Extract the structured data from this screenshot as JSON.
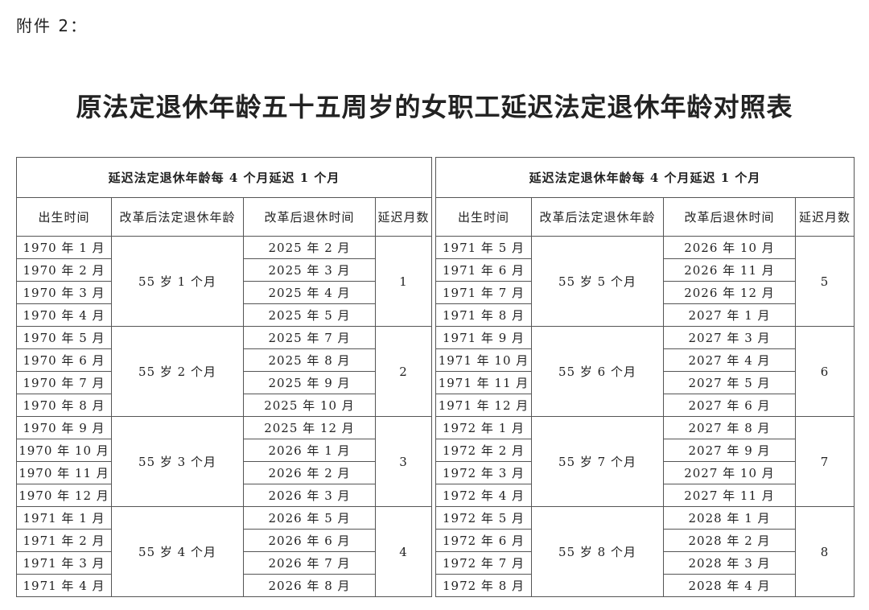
{
  "attachment_label": "附件 2：",
  "title": "原法定退休年龄五十五周岁的女职工延迟法定退休年龄对照表",
  "tables": [
    {
      "header": "延迟法定退休年龄每 4 个月延迟 1 个月",
      "columns": [
        "出生时间",
        "改革后法定退休年龄",
        "改革后退休时间",
        "延迟月数"
      ],
      "groups": [
        {
          "age": "55 岁 1 个月",
          "months": "1",
          "rows": [
            {
              "birth": "1970 年 1 月",
              "retire": "2025 年 2 月"
            },
            {
              "birth": "1970 年 2 月",
              "retire": "2025 年 3 月"
            },
            {
              "birth": "1970 年 3 月",
              "retire": "2025 年 4 月"
            },
            {
              "birth": "1970 年 4 月",
              "retire": "2025 年 5 月"
            }
          ]
        },
        {
          "age": "55 岁 2 个月",
          "months": "2",
          "rows": [
            {
              "birth": "1970 年 5 月",
              "retire": "2025 年 7 月"
            },
            {
              "birth": "1970 年 6 月",
              "retire": "2025 年 8 月"
            },
            {
              "birth": "1970 年 7 月",
              "retire": "2025 年 9 月"
            },
            {
              "birth": "1970 年 8 月",
              "retire": "2025 年 10 月"
            }
          ]
        },
        {
          "age": "55 岁 3 个月",
          "months": "3",
          "rows": [
            {
              "birth": "1970 年 9 月",
              "retire": "2025 年 12 月"
            },
            {
              "birth": "1970 年 10 月",
              "retire": "2026 年 1 月"
            },
            {
              "birth": "1970 年 11 月",
              "retire": "2026 年 2 月"
            },
            {
              "birth": "1970 年 12 月",
              "retire": "2026 年 3 月"
            }
          ]
        },
        {
          "age": "55 岁 4 个月",
          "months": "4",
          "rows": [
            {
              "birth": "1971 年 1 月",
              "retire": "2026 年 5 月"
            },
            {
              "birth": "1971 年 2 月",
              "retire": "2026 年 6 月"
            },
            {
              "birth": "1971 年 3 月",
              "retire": "2026 年 7 月"
            },
            {
              "birth": "1971 年 4 月",
              "retire": "2026 年 8 月"
            }
          ]
        }
      ]
    },
    {
      "header": "延迟法定退休年龄每 4 个月延迟 1 个月",
      "columns": [
        "出生时间",
        "改革后法定退休年龄",
        "改革后退休时间",
        "延迟月数"
      ],
      "groups": [
        {
          "age": "55 岁 5 个月",
          "months": "5",
          "rows": [
            {
              "birth": "1971 年 5 月",
              "retire": "2026 年 10 月"
            },
            {
              "birth": "1971 年 6 月",
              "retire": "2026 年 11 月"
            },
            {
              "birth": "1971 年 7 月",
              "retire": "2026 年 12 月"
            },
            {
              "birth": "1971 年 8 月",
              "retire": "2027 年 1 月"
            }
          ]
        },
        {
          "age": "55 岁 6 个月",
          "months": "6",
          "rows": [
            {
              "birth": "1971 年 9 月",
              "retire": "2027 年 3 月"
            },
            {
              "birth": "1971 年 10 月",
              "retire": "2027 年 4 月"
            },
            {
              "birth": "1971 年 11 月",
              "retire": "2027 年 5 月"
            },
            {
              "birth": "1971 年 12 月",
              "retire": "2027 年 6 月"
            }
          ]
        },
        {
          "age": "55 岁 7 个月",
          "months": "7",
          "rows": [
            {
              "birth": "1972 年 1 月",
              "retire": "2027 年 8 月"
            },
            {
              "birth": "1972 年 2 月",
              "retire": "2027 年 9 月"
            },
            {
              "birth": "1972 年 3 月",
              "retire": "2027 年 10 月"
            },
            {
              "birth": "1972 年 4 月",
              "retire": "2027 年 11 月"
            }
          ]
        },
        {
          "age": "55 岁 8 个月",
          "months": "8",
          "rows": [
            {
              "birth": "1972 年 5 月",
              "retire": "2028 年 1 月"
            },
            {
              "birth": "1972 年 6 月",
              "retire": "2028 年 2 月"
            },
            {
              "birth": "1972 年 7 月",
              "retire": "2028 年 3 月"
            },
            {
              "birth": "1972 年 8 月",
              "retire": "2028 年 4 月"
            }
          ]
        }
      ]
    }
  ]
}
